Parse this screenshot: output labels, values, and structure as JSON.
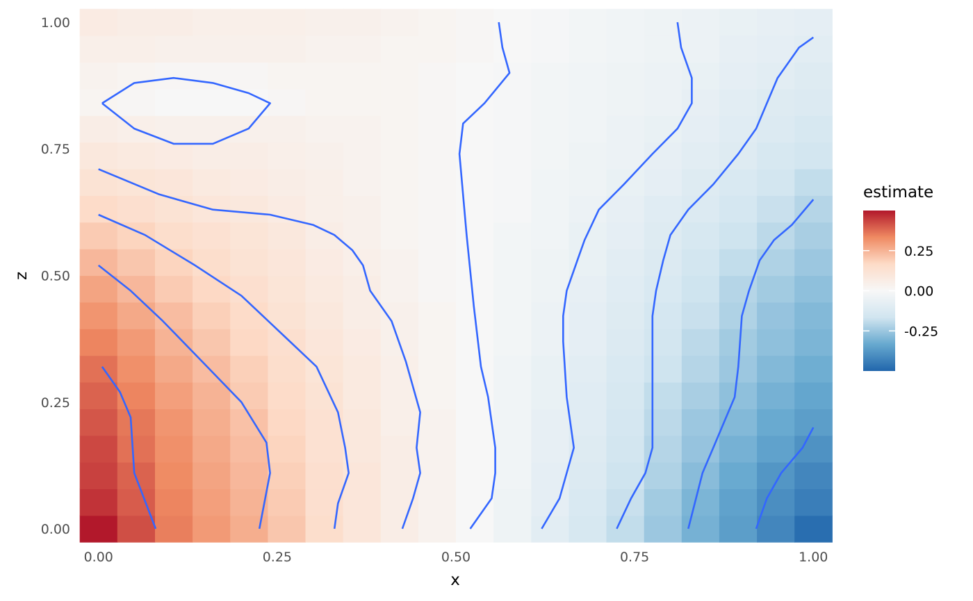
{
  "chart_data": {
    "type": "heatmap",
    "xlabel": "x",
    "ylabel": "z",
    "xlim": [
      -0.026,
      1.026
    ],
    "ylim": [
      -0.026,
      1.026
    ],
    "x_ticks": [
      "0.00",
      "0.25",
      "0.50",
      "0.75",
      "1.00"
    ],
    "y_ticks": [
      "0.00",
      "0.25",
      "0.50",
      "0.75",
      "1.00"
    ],
    "grid": true,
    "legend": {
      "title": "estimate",
      "placement": "right",
      "ticks": [
        0.25,
        0.0,
        -0.25
      ],
      "tick_labels": [
        "0.25",
        "0.00",
        "-0.25"
      ],
      "range": [
        -0.5,
        0.5
      ],
      "colors": [
        "#b2182b",
        "#ef8a62",
        "#fddbc7",
        "#f7f7f7",
        "#d1e5f0",
        "#67a9cf",
        "#2166ac"
      ]
    },
    "grid_x": [
      0.0,
      0.0526,
      0.1053,
      0.1579,
      0.2105,
      0.2632,
      0.3158,
      0.3684,
      0.4211,
      0.4737,
      0.5263,
      0.5789,
      0.6316,
      0.6842,
      0.7368,
      0.7895,
      0.8421,
      0.8947,
      0.9474,
      1.0
    ],
    "grid_z": [
      0.0,
      0.0526,
      0.1053,
      0.1579,
      0.2105,
      0.2632,
      0.3158,
      0.3684,
      0.4211,
      0.4737,
      0.5263,
      0.5789,
      0.6316,
      0.6842,
      0.7368,
      0.7895,
      0.8421,
      0.8947,
      0.9474,
      1.0
    ],
    "estimate_rows_bottom_to_top": [
      [
        0.5,
        0.42,
        0.35,
        0.3,
        0.26,
        0.21,
        0.15,
        0.1,
        0.06,
        0.03,
        0.0,
        -0.04,
        -0.09,
        -0.14,
        -0.19,
        -0.25,
        -0.31,
        -0.36,
        -0.42,
        -0.48
      ],
      [
        0.46,
        0.4,
        0.34,
        0.29,
        0.25,
        0.2,
        0.14,
        0.1,
        0.06,
        0.03,
        0.0,
        -0.04,
        -0.08,
        -0.13,
        -0.18,
        -0.24,
        -0.3,
        -0.35,
        -0.4,
        -0.44
      ],
      [
        0.44,
        0.39,
        0.33,
        0.28,
        0.24,
        0.19,
        0.14,
        0.1,
        0.06,
        0.03,
        0.0,
        -0.03,
        -0.08,
        -0.12,
        -0.17,
        -0.22,
        -0.28,
        -0.33,
        -0.38,
        -0.42
      ],
      [
        0.43,
        0.37,
        0.32,
        0.27,
        0.23,
        0.18,
        0.13,
        0.09,
        0.06,
        0.03,
        0.0,
        -0.03,
        -0.07,
        -0.11,
        -0.16,
        -0.21,
        -0.26,
        -0.31,
        -0.35,
        -0.39
      ],
      [
        0.41,
        0.36,
        0.31,
        0.26,
        0.22,
        0.17,
        0.13,
        0.09,
        0.05,
        0.03,
        0.0,
        -0.03,
        -0.07,
        -0.1,
        -0.15,
        -0.2,
        -0.25,
        -0.29,
        -0.33,
        -0.36
      ],
      [
        0.39,
        0.34,
        0.29,
        0.25,
        0.2,
        0.16,
        0.12,
        0.08,
        0.05,
        0.02,
        0.0,
        -0.03,
        -0.06,
        -0.1,
        -0.14,
        -0.19,
        -0.23,
        -0.27,
        -0.31,
        -0.34
      ],
      [
        0.37,
        0.32,
        0.27,
        0.23,
        0.19,
        0.15,
        0.11,
        0.08,
        0.05,
        0.02,
        0.0,
        -0.03,
        -0.06,
        -0.09,
        -0.13,
        -0.17,
        -0.21,
        -0.25,
        -0.29,
        -0.32
      ],
      [
        0.34,
        0.3,
        0.25,
        0.21,
        0.17,
        0.14,
        0.1,
        0.07,
        0.04,
        0.02,
        0.0,
        -0.02,
        -0.05,
        -0.08,
        -0.12,
        -0.16,
        -0.2,
        -0.24,
        -0.27,
        -0.3
      ],
      [
        0.31,
        0.27,
        0.23,
        0.19,
        0.16,
        0.12,
        0.09,
        0.06,
        0.04,
        0.02,
        0.0,
        -0.02,
        -0.05,
        -0.08,
        -0.11,
        -0.15,
        -0.18,
        -0.22,
        -0.26,
        -0.29
      ],
      [
        0.28,
        0.24,
        0.2,
        0.17,
        0.14,
        0.11,
        0.08,
        0.06,
        0.03,
        0.01,
        0.0,
        -0.02,
        -0.04,
        -0.07,
        -0.1,
        -0.13,
        -0.17,
        -0.21,
        -0.24,
        -0.27
      ],
      [
        0.24,
        0.21,
        0.18,
        0.15,
        0.12,
        0.1,
        0.07,
        0.05,
        0.03,
        0.01,
        0.0,
        -0.02,
        -0.04,
        -0.06,
        -0.09,
        -0.12,
        -0.16,
        -0.19,
        -0.22,
        -0.25
      ],
      [
        0.2,
        0.18,
        0.15,
        0.13,
        0.11,
        0.09,
        0.06,
        0.04,
        0.02,
        0.01,
        0.0,
        -0.02,
        -0.03,
        -0.06,
        -0.08,
        -0.11,
        -0.14,
        -0.17,
        -0.2,
        -0.23
      ],
      [
        0.16,
        0.14,
        0.12,
        0.1,
        0.09,
        0.07,
        0.05,
        0.04,
        0.02,
        0.01,
        0.0,
        -0.01,
        -0.03,
        -0.05,
        -0.07,
        -0.1,
        -0.12,
        -0.15,
        -0.18,
        -0.21
      ],
      [
        0.12,
        0.11,
        0.1,
        0.08,
        0.07,
        0.06,
        0.05,
        0.03,
        0.02,
        0.01,
        0.0,
        -0.01,
        -0.03,
        -0.04,
        -0.06,
        -0.08,
        -0.11,
        -0.13,
        -0.16,
        -0.19
      ],
      [
        0.09,
        0.08,
        0.07,
        0.06,
        0.06,
        0.05,
        0.04,
        0.03,
        0.02,
        0.01,
        0.0,
        -0.01,
        -0.02,
        -0.04,
        -0.05,
        -0.07,
        -0.09,
        -0.11,
        -0.14,
        -0.16
      ],
      [
        0.06,
        0.05,
        0.04,
        0.04,
        0.04,
        0.04,
        0.03,
        0.03,
        0.02,
        0.01,
        0.0,
        -0.01,
        -0.02,
        -0.03,
        -0.05,
        -0.06,
        -0.08,
        -0.1,
        -0.12,
        -0.14
      ],
      [
        0.02,
        0.01,
        0.0,
        0.0,
        0.0,
        0.01,
        0.02,
        0.02,
        0.02,
        0.01,
        0.0,
        -0.01,
        -0.02,
        -0.03,
        -0.04,
        -0.05,
        -0.07,
        -0.09,
        -0.11,
        -0.12
      ],
      [
        0.03,
        0.02,
        0.01,
        0.01,
        0.01,
        0.02,
        0.02,
        0.02,
        0.02,
        0.01,
        0.0,
        -0.01,
        -0.02,
        -0.03,
        -0.04,
        -0.05,
        -0.06,
        -0.08,
        -0.09,
        -0.11
      ],
      [
        0.05,
        0.05,
        0.04,
        0.04,
        0.04,
        0.04,
        0.03,
        0.03,
        0.02,
        0.02,
        0.01,
        0.0,
        -0.01,
        -0.02,
        -0.03,
        -0.04,
        -0.05,
        -0.07,
        -0.08,
        -0.09
      ],
      [
        0.07,
        0.06,
        0.06,
        0.05,
        0.05,
        0.05,
        0.04,
        0.04,
        0.03,
        0.02,
        0.01,
        0.0,
        -0.01,
        -0.02,
        -0.03,
        -0.04,
        -0.05,
        -0.06,
        -0.07,
        -0.08
      ]
    ],
    "contours": [
      [
        [
          0.005,
          0.32
        ],
        [
          0.03,
          0.27
        ],
        [
          0.045,
          0.22
        ],
        [
          0.05,
          0.11
        ],
        [
          0.08,
          0.0
        ]
      ],
      [
        [
          0.0,
          0.52
        ],
        [
          0.045,
          0.47
        ],
        [
          0.09,
          0.41
        ],
        [
          0.145,
          0.33
        ],
        [
          0.2,
          0.25
        ],
        [
          0.235,
          0.17
        ],
        [
          0.24,
          0.11
        ],
        [
          0.225,
          0.0
        ]
      ],
      [
        [
          0.0,
          0.62
        ],
        [
          0.065,
          0.58
        ],
        [
          0.135,
          0.52
        ],
        [
          0.2,
          0.46
        ],
        [
          0.26,
          0.38
        ],
        [
          0.305,
          0.32
        ],
        [
          0.335,
          0.23
        ],
        [
          0.345,
          0.16
        ],
        [
          0.35,
          0.11
        ],
        [
          0.335,
          0.05
        ],
        [
          0.33,
          0.0
        ]
      ],
      [
        [
          0.0,
          0.71
        ],
        [
          0.085,
          0.66
        ],
        [
          0.16,
          0.63
        ],
        [
          0.24,
          0.62
        ],
        [
          0.3,
          0.6
        ],
        [
          0.33,
          0.58
        ],
        [
          0.355,
          0.55
        ],
        [
          0.37,
          0.52
        ],
        [
          0.38,
          0.47
        ],
        [
          0.41,
          0.41
        ],
        [
          0.43,
          0.33
        ],
        [
          0.45,
          0.23
        ],
        [
          0.445,
          0.16
        ],
        [
          0.45,
          0.11
        ],
        [
          0.44,
          0.06
        ],
        [
          0.425,
          0.0
        ]
      ],
      [
        [
          0.005,
          0.84
        ],
        [
          0.05,
          0.88
        ],
        [
          0.105,
          0.89
        ],
        [
          0.16,
          0.88
        ],
        [
          0.21,
          0.86
        ],
        [
          0.24,
          0.84
        ],
        [
          0.21,
          0.79
        ],
        [
          0.16,
          0.76
        ],
        [
          0.105,
          0.76
        ],
        [
          0.05,
          0.79
        ],
        [
          0.005,
          0.84
        ]
      ],
      [
        [
          0.56,
          1.0
        ],
        [
          0.565,
          0.95
        ],
        [
          0.575,
          0.9
        ],
        [
          0.54,
          0.84
        ],
        [
          0.51,
          0.8
        ],
        [
          0.505,
          0.74
        ],
        [
          0.515,
          0.58
        ],
        [
          0.525,
          0.44
        ],
        [
          0.535,
          0.32
        ],
        [
          0.545,
          0.26
        ],
        [
          0.555,
          0.16
        ],
        [
          0.555,
          0.11
        ],
        [
          0.55,
          0.06
        ],
        [
          0.52,
          0.0
        ]
      ],
      [
        [
          0.81,
          1.0
        ],
        [
          0.815,
          0.95
        ],
        [
          0.83,
          0.89
        ],
        [
          0.83,
          0.84
        ],
        [
          0.81,
          0.79
        ],
        [
          0.775,
          0.74
        ],
        [
          0.735,
          0.68
        ],
        [
          0.7,
          0.63
        ],
        [
          0.68,
          0.57
        ],
        [
          0.67,
          0.53
        ],
        [
          0.655,
          0.47
        ],
        [
          0.65,
          0.42
        ],
        [
          0.65,
          0.37
        ],
        [
          0.655,
          0.26
        ],
        [
          0.665,
          0.16
        ],
        [
          0.655,
          0.11
        ],
        [
          0.645,
          0.06
        ],
        [
          0.62,
          0.0
        ]
      ],
      [
        [
          1.0,
          0.97
        ],
        [
          0.98,
          0.95
        ],
        [
          0.95,
          0.89
        ],
        [
          0.935,
          0.84
        ],
        [
          0.92,
          0.79
        ],
        [
          0.895,
          0.74
        ],
        [
          0.86,
          0.68
        ],
        [
          0.825,
          0.63
        ],
        [
          0.8,
          0.58
        ],
        [
          0.79,
          0.53
        ],
        [
          0.78,
          0.47
        ],
        [
          0.775,
          0.42
        ],
        [
          0.775,
          0.37
        ],
        [
          0.775,
          0.26
        ],
        [
          0.775,
          0.16
        ],
        [
          0.765,
          0.11
        ],
        [
          0.745,
          0.06
        ],
        [
          0.725,
          0.0
        ]
      ],
      [
        [
          1.0,
          0.65
        ],
        [
          0.97,
          0.6
        ],
        [
          0.945,
          0.57
        ],
        [
          0.925,
          0.53
        ],
        [
          0.91,
          0.47
        ],
        [
          0.9,
          0.42
        ],
        [
          0.895,
          0.32
        ],
        [
          0.89,
          0.26
        ],
        [
          0.875,
          0.21
        ],
        [
          0.86,
          0.16
        ],
        [
          0.845,
          0.11
        ],
        [
          0.825,
          0.0
        ]
      ],
      [
        [
          1.0,
          0.2
        ],
        [
          0.985,
          0.16
        ],
        [
          0.955,
          0.11
        ],
        [
          0.935,
          0.06
        ],
        [
          0.92,
          0.0
        ]
      ]
    ]
  }
}
